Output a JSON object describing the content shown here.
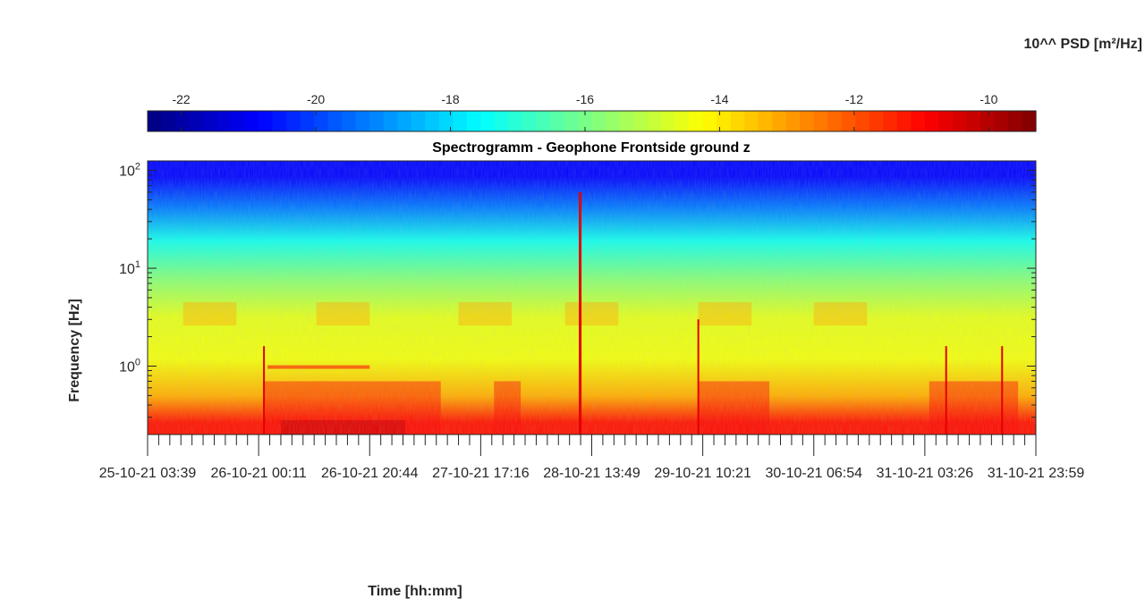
{
  "chart_data": {
    "type": "heatmap",
    "title": "Spectrogramm - Geophone Frontside ground z",
    "xlabel": "Time [hh:mm]",
    "ylabel": "Frequency [Hz]",
    "colorbar_label": "10^^ PSD [m²/Hz]",
    "colormap": "jet",
    "colorbar_range": [
      -22.5,
      -9.3
    ],
    "colorbar_ticks": [
      "-22",
      "-20",
      "-18",
      "-16",
      "-14",
      "-12",
      "-10"
    ],
    "x_tick_labels": [
      "25-10-21 03:39",
      "26-10-21 00:11",
      "26-10-21 20:44",
      "27-10-21 17:16",
      "28-10-21 13:49",
      "29-10-21 10:21",
      "30-10-21 06:54",
      "31-10-21 03:26",
      "31-10-21 23:59"
    ],
    "y_scale": "log",
    "y_range_hz": [
      0.2,
      125
    ],
    "y_ticks": [
      {
        "base": "10",
        "exp": "0",
        "value": 1
      },
      {
        "base": "10",
        "exp": "1",
        "value": 10
      },
      {
        "base": "10",
        "exp": "2",
        "value": 100
      }
    ],
    "grid": false,
    "frequency_bands": [
      {
        "hz_min": 0.2,
        "hz_max": 0.35,
        "psd_log10": -11.2
      },
      {
        "hz_min": 0.35,
        "hz_max": 0.7,
        "psd_log10": -13.2
      },
      {
        "hz_min": 0.7,
        "hz_max": 2,
        "psd_log10": -14.4
      },
      {
        "hz_min": 2,
        "hz_max": 5,
        "psd_log10": -14.6
      },
      {
        "hz_min": 5,
        "hz_max": 12,
        "psd_log10": -15.8
      },
      {
        "hz_min": 12,
        "hz_max": 30,
        "psd_log10": -17.3
      },
      {
        "hz_min": 30,
        "hz_max": 60,
        "psd_log10": -19.3
      },
      {
        "hz_min": 60,
        "hz_max": 125,
        "psd_log10": -20.8
      }
    ],
    "spikes_time_fraction": [
      0.131,
      0.487,
      0.62,
      0.899,
      0.962
    ]
  }
}
